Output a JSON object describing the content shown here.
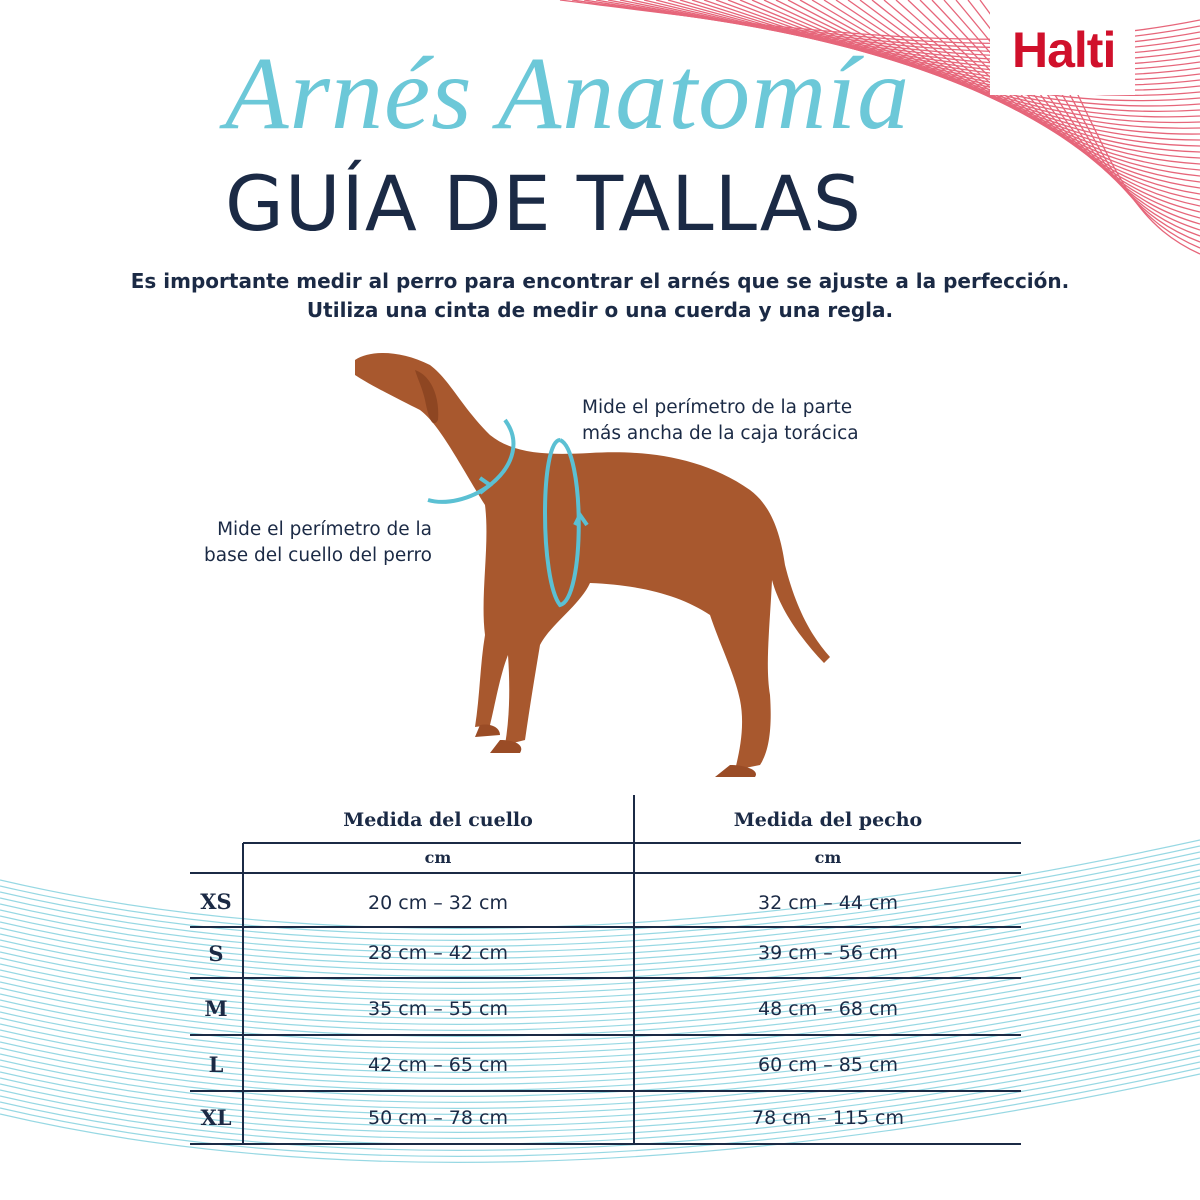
{
  "brand": {
    "logo": "Halti",
    "color": "#d0102b"
  },
  "header": {
    "script_title": "Arnés Anatomía",
    "title": "GUÍA DE TALLAS",
    "intro_line1": "Es importante medir al perro para encontrar el arnés que se ajuste a la perfección.",
    "intro_line2": "Utiliza una cinta de medir o una cuerda y una regla."
  },
  "illustration": {
    "neck_note_line1": "Mide el perímetro de la",
    "neck_note_line2": "base del cuello del perro",
    "chest_note_line1": "Mide el perímetro de la parte",
    "chest_note_line2": "más ancha de la caja torácica",
    "accent": "#5bc0d3"
  },
  "table": {
    "col_neck": "Medida del cuello",
    "col_chest": "Medida del pecho",
    "unit_neck": "cm",
    "unit_chest": "cm",
    "rows": [
      {
        "size": "XS",
        "neck": "20 cm – 32 cm",
        "chest": "32 cm – 44 cm"
      },
      {
        "size": "S",
        "neck": "28 cm – 42 cm",
        "chest": "39 cm – 56 cm"
      },
      {
        "size": "M",
        "neck": "35 cm – 55 cm",
        "chest": "48 cm – 68 cm"
      },
      {
        "size": "L",
        "neck": "42 cm – 65 cm",
        "chest": "60 cm – 85 cm"
      },
      {
        "size": "XL",
        "neck": "50 cm – 78 cm",
        "chest": "78 cm – 115 cm"
      }
    ]
  }
}
